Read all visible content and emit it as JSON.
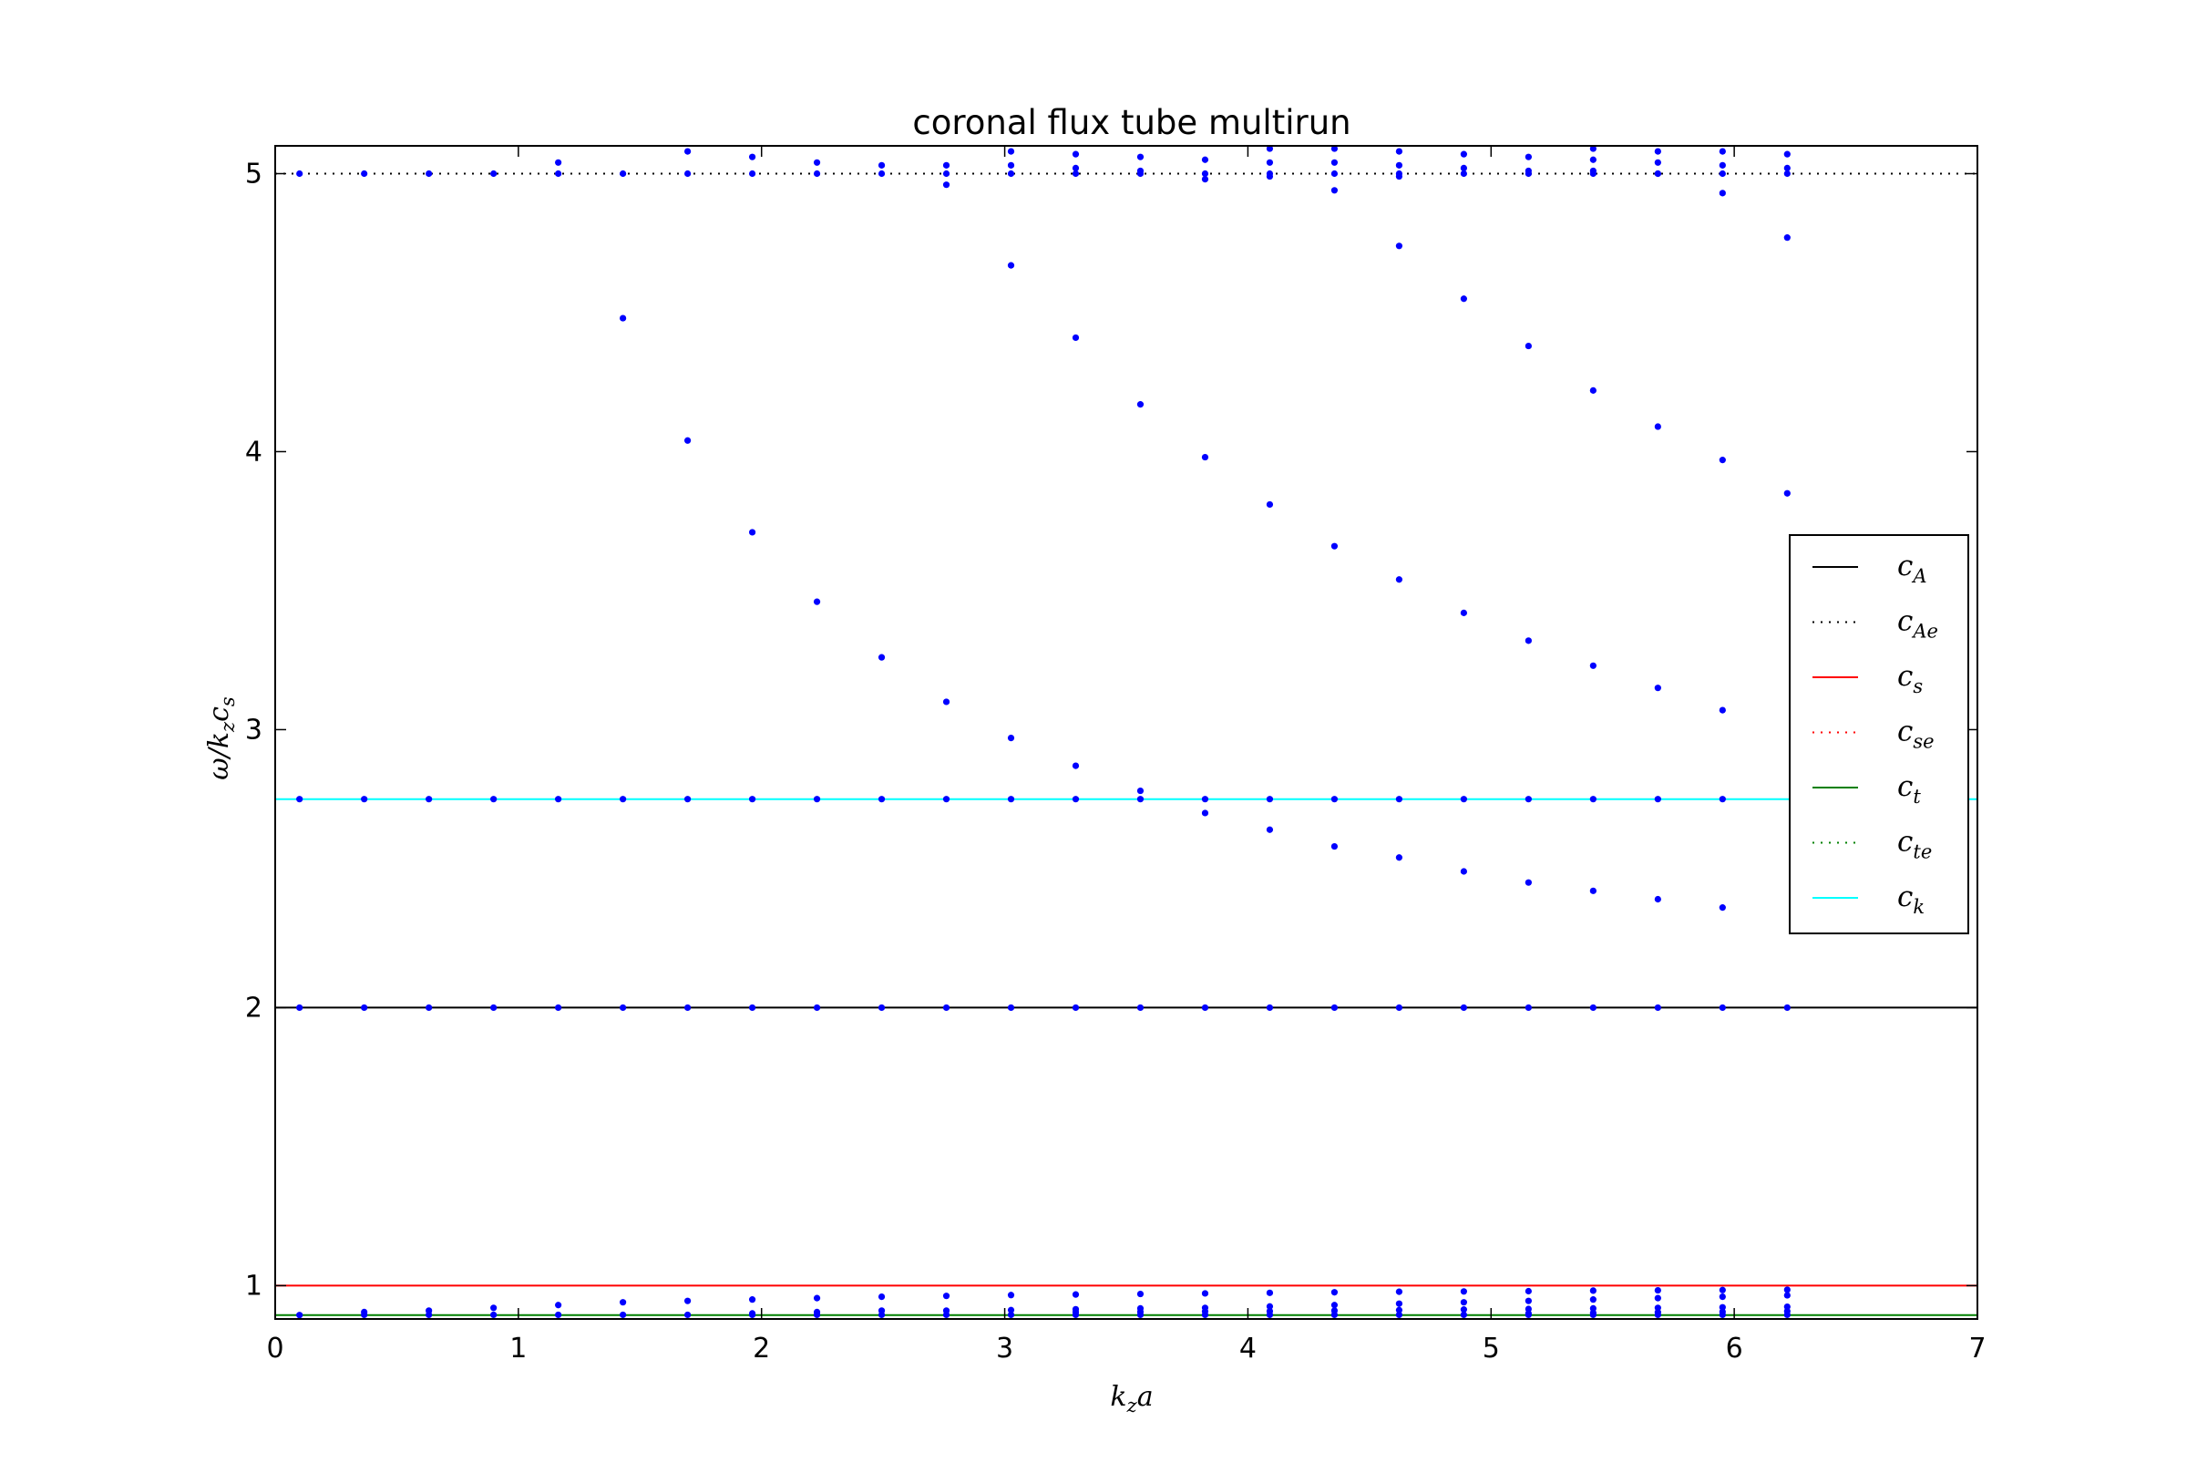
{
  "chart_data": {
    "type": "scatter",
    "title": "coronal flux tube multirun",
    "xlabel": "k_z a",
    "ylabel": "ω/k_z c_s",
    "xlim": [
      0,
      7
    ],
    "ylim": [
      0.88,
      5.1
    ],
    "xticks": [
      "0",
      "1",
      "2",
      "3",
      "4",
      "5",
      "6",
      "7"
    ],
    "yticks": [
      "1",
      "2",
      "3",
      "4",
      "5"
    ],
    "grid": false,
    "legend_position": "center-right",
    "series": [
      {
        "name": "",
        "color": "#0000ff",
        "points": [
          [
            0.1,
            5.0
          ],
          [
            0.366,
            5.0
          ],
          [
            0.632,
            5.0
          ],
          [
            0.898,
            5.0
          ],
          [
            1.164,
            5.0
          ],
          [
            1.43,
            5.0
          ],
          [
            1.696,
            5.0
          ],
          [
            1.962,
            5.0
          ],
          [
            2.228,
            5.0
          ],
          [
            2.494,
            5.0
          ],
          [
            2.76,
            5.0
          ],
          [
            3.026,
            5.0
          ],
          [
            3.292,
            5.0
          ],
          [
            3.558,
            5.0
          ],
          [
            3.824,
            5.0
          ],
          [
            4.09,
            5.0
          ],
          [
            4.356,
            5.0
          ],
          [
            4.622,
            5.0
          ],
          [
            4.888,
            5.0
          ],
          [
            5.154,
            5.0
          ],
          [
            5.42,
            5.0
          ],
          [
            5.686,
            5.0
          ],
          [
            5.952,
            5.0
          ],
          [
            6.218,
            5.0
          ],
          [
            1.164,
            5.04
          ],
          [
            1.696,
            5.08
          ],
          [
            1.962,
            5.06
          ],
          [
            2.228,
            5.04
          ],
          [
            2.494,
            5.03
          ],
          [
            2.76,
            5.03
          ],
          [
            2.76,
            4.96
          ],
          [
            3.026,
            5.08
          ],
          [
            3.026,
            5.03
          ],
          [
            3.292,
            5.07
          ],
          [
            3.292,
            5.02
          ],
          [
            3.558,
            5.06
          ],
          [
            3.558,
            5.01
          ],
          [
            3.824,
            5.05
          ],
          [
            3.824,
            4.98
          ],
          [
            4.09,
            5.09
          ],
          [
            4.09,
            5.04
          ],
          [
            4.09,
            4.99
          ],
          [
            4.356,
            5.09
          ],
          [
            4.356,
            5.04
          ],
          [
            4.356,
            4.94
          ],
          [
            4.622,
            5.08
          ],
          [
            4.622,
            5.03
          ],
          [
            4.622,
            4.99
          ],
          [
            4.888,
            5.07
          ],
          [
            4.888,
            5.02
          ],
          [
            5.154,
            5.06
          ],
          [
            5.154,
            5.01
          ],
          [
            5.42,
            5.09
          ],
          [
            5.42,
            5.05
          ],
          [
            5.42,
            5.01
          ],
          [
            5.686,
            5.08
          ],
          [
            5.686,
            5.04
          ],
          [
            5.686,
            5.0
          ],
          [
            5.952,
            5.08
          ],
          [
            5.952,
            5.03
          ],
          [
            5.952,
            4.93
          ],
          [
            6.218,
            5.07
          ],
          [
            6.218,
            5.02
          ],
          [
            1.43,
            4.48
          ],
          [
            1.696,
            4.04
          ],
          [
            1.962,
            3.71
          ],
          [
            2.228,
            3.46
          ],
          [
            2.494,
            3.26
          ],
          [
            2.76,
            3.1
          ],
          [
            3.026,
            2.97
          ],
          [
            3.292,
            2.87
          ],
          [
            3.558,
            2.78
          ],
          [
            3.824,
            2.7
          ],
          [
            3.026,
            4.67
          ],
          [
            3.292,
            4.41
          ],
          [
            3.558,
            4.17
          ],
          [
            3.824,
            3.98
          ],
          [
            4.09,
            3.81
          ],
          [
            4.356,
            3.66
          ],
          [
            4.622,
            3.54
          ],
          [
            4.888,
            3.42
          ],
          [
            5.154,
            3.32
          ],
          [
            5.42,
            3.23
          ],
          [
            5.686,
            3.15
          ],
          [
            5.952,
            3.07
          ],
          [
            4.09,
            2.64
          ],
          [
            4.356,
            2.58
          ],
          [
            4.622,
            2.54
          ],
          [
            4.888,
            2.49
          ],
          [
            5.154,
            2.45
          ],
          [
            5.42,
            2.42
          ],
          [
            5.686,
            2.39
          ],
          [
            5.952,
            2.36
          ],
          [
            4.622,
            4.74
          ],
          [
            4.888,
            4.55
          ],
          [
            5.154,
            4.38
          ],
          [
            5.42,
            4.22
          ],
          [
            5.686,
            4.09
          ],
          [
            5.952,
            3.97
          ],
          [
            6.218,
            3.85
          ],
          [
            6.218,
            4.77
          ],
          [
            0.1,
            2.75
          ],
          [
            0.366,
            2.75
          ],
          [
            0.632,
            2.75
          ],
          [
            0.898,
            2.75
          ],
          [
            1.164,
            2.75
          ],
          [
            1.43,
            2.75
          ],
          [
            1.696,
            2.75
          ],
          [
            1.962,
            2.75
          ],
          [
            2.228,
            2.75
          ],
          [
            2.494,
            2.75
          ],
          [
            2.76,
            2.75
          ],
          [
            3.026,
            2.75
          ],
          [
            3.292,
            2.75
          ],
          [
            3.558,
            2.75
          ],
          [
            3.824,
            2.75
          ],
          [
            4.09,
            2.75
          ],
          [
            4.356,
            2.75
          ],
          [
            4.622,
            2.75
          ],
          [
            4.888,
            2.75
          ],
          [
            5.154,
            2.75
          ],
          [
            5.42,
            2.75
          ],
          [
            5.686,
            2.75
          ],
          [
            5.952,
            2.75
          ],
          [
            0.1,
            2.0
          ],
          [
            0.366,
            2.0
          ],
          [
            0.632,
            2.0
          ],
          [
            0.898,
            2.0
          ],
          [
            1.164,
            2.0
          ],
          [
            1.43,
            2.0
          ],
          [
            1.696,
            2.0
          ],
          [
            1.962,
            2.0
          ],
          [
            2.228,
            2.0
          ],
          [
            2.494,
            2.0
          ],
          [
            2.76,
            2.0
          ],
          [
            3.026,
            2.0
          ],
          [
            3.292,
            2.0
          ],
          [
            3.558,
            2.0
          ],
          [
            3.824,
            2.0
          ],
          [
            4.09,
            2.0
          ],
          [
            4.356,
            2.0
          ],
          [
            4.622,
            2.0
          ],
          [
            4.888,
            2.0
          ],
          [
            5.154,
            2.0
          ],
          [
            5.42,
            2.0
          ],
          [
            5.686,
            2.0
          ],
          [
            5.952,
            2.0
          ],
          [
            6.218,
            2.0
          ],
          [
            0.1,
            0.894
          ],
          [
            0.366,
            0.895
          ],
          [
            0.632,
            0.895
          ],
          [
            0.898,
            0.895
          ],
          [
            1.164,
            0.895
          ],
          [
            1.43,
            0.895
          ],
          [
            1.696,
            0.895
          ],
          [
            1.962,
            0.895
          ],
          [
            2.228,
            0.895
          ],
          [
            2.494,
            0.895
          ],
          [
            2.76,
            0.895
          ],
          [
            3.026,
            0.895
          ],
          [
            3.292,
            0.895
          ],
          [
            3.558,
            0.895
          ],
          [
            3.824,
            0.895
          ],
          [
            4.09,
            0.895
          ],
          [
            4.356,
            0.895
          ],
          [
            4.622,
            0.895
          ],
          [
            4.888,
            0.895
          ],
          [
            5.154,
            0.895
          ],
          [
            5.42,
            0.895
          ],
          [
            5.686,
            0.895
          ],
          [
            5.952,
            0.895
          ],
          [
            6.218,
            0.895
          ],
          [
            0.366,
            0.905
          ],
          [
            0.632,
            0.91
          ],
          [
            0.898,
            0.92
          ],
          [
            1.164,
            0.93
          ],
          [
            1.43,
            0.94
          ],
          [
            1.696,
            0.945
          ],
          [
            1.962,
            0.95
          ],
          [
            2.228,
            0.955
          ],
          [
            2.494,
            0.96
          ],
          [
            2.76,
            0.963
          ],
          [
            3.026,
            0.966
          ],
          [
            3.292,
            0.968
          ],
          [
            3.558,
            0.97
          ],
          [
            3.824,
            0.972
          ],
          [
            4.09,
            0.974
          ],
          [
            4.356,
            0.976
          ],
          [
            4.622,
            0.978
          ],
          [
            4.888,
            0.979
          ],
          [
            5.154,
            0.98
          ],
          [
            5.42,
            0.982
          ],
          [
            5.686,
            0.983
          ],
          [
            5.952,
            0.984
          ],
          [
            6.218,
            0.985
          ],
          [
            1.962,
            0.9
          ],
          [
            2.228,
            0.905
          ],
          [
            2.494,
            0.91
          ],
          [
            2.76,
            0.91
          ],
          [
            3.026,
            0.912
          ],
          [
            3.292,
            0.915
          ],
          [
            3.558,
            0.918
          ],
          [
            3.824,
            0.92
          ],
          [
            4.09,
            0.925
          ],
          [
            4.356,
            0.93
          ],
          [
            4.622,
            0.935
          ],
          [
            4.888,
            0.94
          ],
          [
            5.154,
            0.945
          ],
          [
            5.42,
            0.95
          ],
          [
            5.686,
            0.955
          ],
          [
            5.952,
            0.96
          ],
          [
            6.218,
            0.965
          ],
          [
            3.292,
            0.905
          ],
          [
            3.558,
            0.906
          ],
          [
            3.824,
            0.907
          ],
          [
            4.09,
            0.908
          ],
          [
            4.356,
            0.91
          ],
          [
            4.622,
            0.912
          ],
          [
            4.888,
            0.914
          ],
          [
            5.154,
            0.916
          ],
          [
            5.42,
            0.918
          ],
          [
            5.686,
            0.92
          ],
          [
            5.952,
            0.922
          ],
          [
            6.218,
            0.924
          ],
          [
            5.154,
            0.9
          ],
          [
            5.42,
            0.902
          ],
          [
            5.686,
            0.904
          ],
          [
            5.952,
            0.906
          ],
          [
            6.218,
            0.908
          ]
        ]
      }
    ],
    "lines": [
      {
        "name": "c_A",
        "y": 2.0,
        "color": "#000000",
        "style": "solid"
      },
      {
        "name": "c_Ae",
        "y": 5.0,
        "color": "#000000",
        "style": "dotted"
      },
      {
        "name": "c_s",
        "y": 1.0,
        "color": "#ff0000",
        "style": "solid"
      },
      {
        "name": "c_se",
        "y": null,
        "color": "#ff0000",
        "style": "dotted"
      },
      {
        "name": "c_t",
        "y": 0.894,
        "color": "#008000",
        "style": "solid"
      },
      {
        "name": "c_te",
        "y": null,
        "color": "#008000",
        "style": "dotted"
      },
      {
        "name": "c_k",
        "y": 2.75,
        "color": "#00ffff",
        "style": "solid"
      }
    ],
    "legend": [
      {
        "base": "c",
        "sub": "A",
        "color": "#000000",
        "style": "solid"
      },
      {
        "base": "c",
        "sub": "Ae",
        "color": "#000000",
        "style": "dotted"
      },
      {
        "base": "c",
        "sub": "s",
        "color": "#ff0000",
        "style": "solid"
      },
      {
        "base": "c",
        "sub": "se",
        "color": "#ff0000",
        "style": "dotted"
      },
      {
        "base": "c",
        "sub": "t",
        "color": "#008000",
        "style": "solid"
      },
      {
        "base": "c",
        "sub": "te",
        "color": "#008000",
        "style": "dotted"
      },
      {
        "base": "c",
        "sub": "k",
        "color": "#00ffff",
        "style": "solid"
      }
    ]
  }
}
